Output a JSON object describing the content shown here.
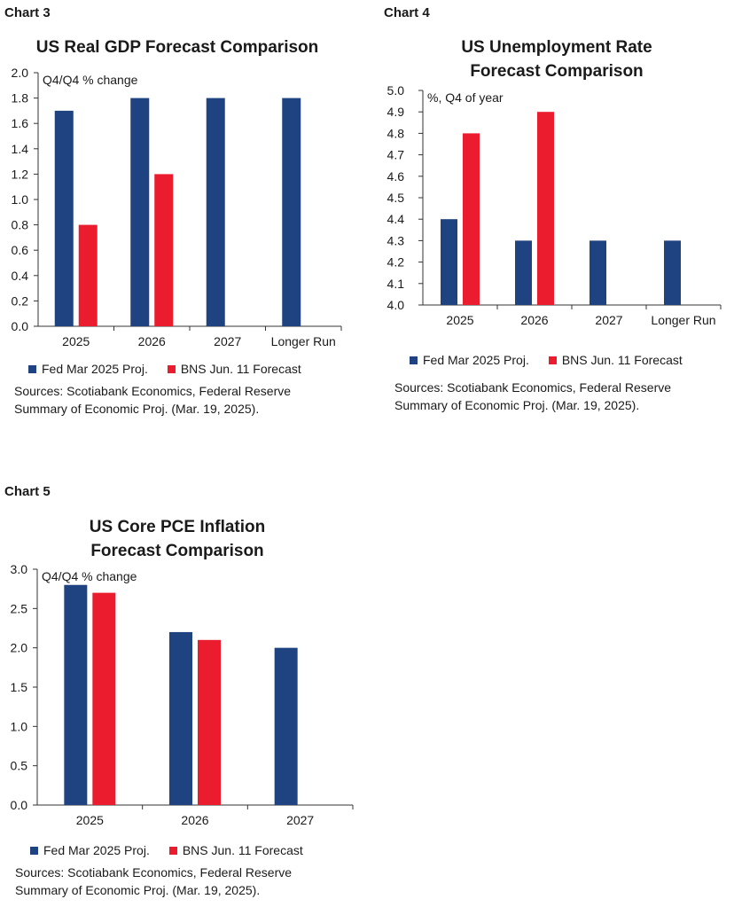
{
  "colors": {
    "fed": "#1f4380",
    "bns": "#ec1c2f",
    "axis": "#333333"
  },
  "chart_data": [
    {
      "id": "c3",
      "type": "bar",
      "label": "Chart 3",
      "title": "US Real GDP Forecast Comparison",
      "unit": "Q4/Q4 % change",
      "categories": [
        "2025",
        "2026",
        "2027",
        "Longer Run"
      ],
      "series": [
        {
          "name": "Fed Mar 2025 Proj.",
          "values": [
            1.7,
            1.8,
            1.8,
            1.8
          ]
        },
        {
          "name": "BNS Jun. 11 Forecast",
          "values": [
            0.8,
            1.2,
            null,
            null
          ]
        }
      ],
      "ylim": [
        0,
        2.0
      ],
      "yticks": [
        "0.0",
        "0.2",
        "0.4",
        "0.6",
        "0.8",
        "1.0",
        "1.2",
        "1.4",
        "1.6",
        "1.8",
        "2.0"
      ],
      "source": [
        "Sources: Scotiabank Economics, Federal Reserve",
        "Summary of Economic Proj. (Mar. 19, 2025)."
      ]
    },
    {
      "id": "c4",
      "type": "bar",
      "label": "Chart 4",
      "title": [
        "US Unemployment Rate",
        "Forecast Comparison"
      ],
      "unit": "%, Q4 of year",
      "categories": [
        "2025",
        "2026",
        "2027",
        "Longer Run"
      ],
      "series": [
        {
          "name": "Fed Mar 2025 Proj.",
          "values": [
            4.4,
            4.3,
            4.3,
            4.3
          ]
        },
        {
          "name": "BNS Jun. 11 Forecast",
          "values": [
            4.8,
            4.9,
            null,
            null
          ]
        }
      ],
      "ylim": [
        4.0,
        5.0
      ],
      "yticks": [
        "4.0",
        "4.1",
        "4.2",
        "4.3",
        "4.4",
        "4.5",
        "4.6",
        "4.7",
        "4.8",
        "4.9",
        "5.0"
      ],
      "source": [
        "Sources: Scotiabank Economics, Federal Reserve",
        "Summary of Economic Proj. (Mar. 19, 2025)."
      ]
    },
    {
      "id": "c5",
      "type": "bar",
      "label": "Chart 5",
      "title": [
        "US Core PCE Inflation",
        "Forecast Comparison"
      ],
      "unit": "Q4/Q4 % change",
      "categories": [
        "2025",
        "2026",
        "2027"
      ],
      "series": [
        {
          "name": "Fed Mar 2025 Proj.",
          "values": [
            2.8,
            2.2,
            2.0
          ]
        },
        {
          "name": "BNS Jun. 11 Forecast",
          "values": [
            2.7,
            2.1,
            null
          ]
        }
      ],
      "ylim": [
        0,
        3.0
      ],
      "yticks": [
        "0.0",
        "0.5",
        "1.0",
        "1.5",
        "2.0",
        "2.5",
        "3.0"
      ],
      "source": [
        "Sources: Scotiabank Economics, Federal Reserve",
        "Summary of Economic Proj. (Mar. 19, 2025)."
      ]
    }
  ]
}
